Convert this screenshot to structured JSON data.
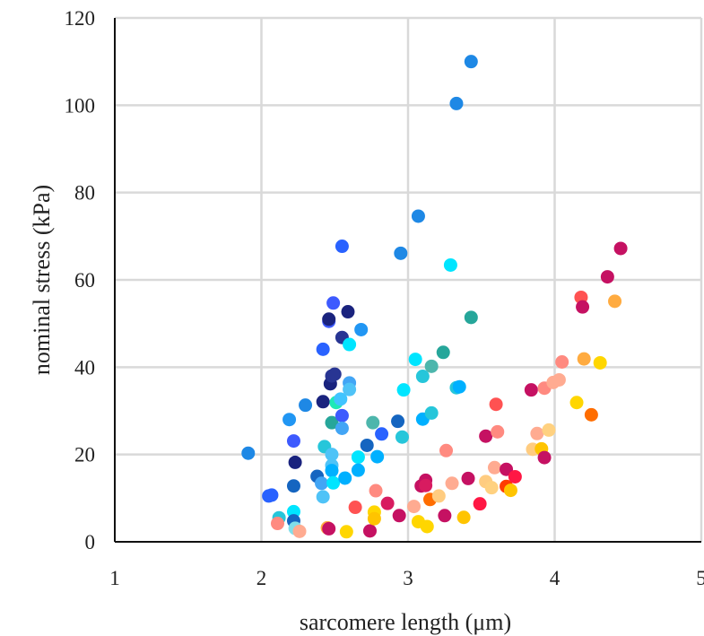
{
  "chart_data": {
    "type": "scatter",
    "xlabel": "sarcomere length (μm)",
    "ylabel": "nominal stress (kPa)",
    "xlim": [
      1,
      5
    ],
    "ylim": [
      0,
      120
    ],
    "xticks": [
      "1",
      "2",
      "3",
      "4",
      "5"
    ],
    "yticks": [
      "0",
      "20",
      "40",
      "60",
      "80",
      "100",
      "120"
    ],
    "grid": true,
    "legend": "none",
    "points": [
      {
        "x": 1.91,
        "y": 20.3,
        "color": "#1e88e5"
      },
      {
        "x": 2.05,
        "y": 10.5,
        "color": "#2962ff"
      },
      {
        "x": 2.07,
        "y": 10.7,
        "color": "#2962ff"
      },
      {
        "x": 2.12,
        "y": 5.5,
        "color": "#26c6da"
      },
      {
        "x": 2.11,
        "y": 4.2,
        "color": "#ff8a80"
      },
      {
        "x": 2.19,
        "y": 28.0,
        "color": "#2196f3"
      },
      {
        "x": 2.22,
        "y": 23.1,
        "color": "#3d5afe"
      },
      {
        "x": 2.23,
        "y": 18.2,
        "color": "#1a237e"
      },
      {
        "x": 2.22,
        "y": 12.8,
        "color": "#1565c0"
      },
      {
        "x": 2.22,
        "y": 6.9,
        "color": "#00e5ff"
      },
      {
        "x": 2.22,
        "y": 4.8,
        "color": "#1565c0"
      },
      {
        "x": 2.23,
        "y": 3.1,
        "color": "#80deea"
      },
      {
        "x": 2.26,
        "y": 2.4,
        "color": "#ffab91"
      },
      {
        "x": 2.3,
        "y": 31.3,
        "color": "#1e88e5"
      },
      {
        "x": 2.38,
        "y": 15.0,
        "color": "#1565c0"
      },
      {
        "x": 2.41,
        "y": 13.4,
        "color": "#42a5f5"
      },
      {
        "x": 2.42,
        "y": 44.1,
        "color": "#2962ff"
      },
      {
        "x": 2.42,
        "y": 32.1,
        "color": "#1a237e"
      },
      {
        "x": 2.43,
        "y": 21.8,
        "color": "#26c6da"
      },
      {
        "x": 2.42,
        "y": 10.3,
        "color": "#4fc3f7"
      },
      {
        "x": 2.45,
        "y": 3.2,
        "color": "#ffab40"
      },
      {
        "x": 2.46,
        "y": 3.0,
        "color": "#c51162"
      },
      {
        "x": 2.46,
        "y": 50.5,
        "color": "#3d5afe"
      },
      {
        "x": 2.46,
        "y": 51.0,
        "color": "#1a237e"
      },
      {
        "x": 2.47,
        "y": 36.2,
        "color": "#1a237e"
      },
      {
        "x": 2.48,
        "y": 38.0,
        "color": "#283593"
      },
      {
        "x": 2.48,
        "y": 27.3,
        "color": "#26a69a"
      },
      {
        "x": 2.48,
        "y": 20.0,
        "color": "#4fc3f7"
      },
      {
        "x": 2.48,
        "y": 17.5,
        "color": "#4fc3f7"
      },
      {
        "x": 2.48,
        "y": 16.3,
        "color": "#00b0ff"
      },
      {
        "x": 2.49,
        "y": 13.5,
        "color": "#00e5ff"
      },
      {
        "x": 2.49,
        "y": 54.7,
        "color": "#3d5afe"
      },
      {
        "x": 2.5,
        "y": 38.4,
        "color": "#283593"
      },
      {
        "x": 2.51,
        "y": 31.9,
        "color": "#1de9b6"
      },
      {
        "x": 2.54,
        "y": 32.7,
        "color": "#40c4ff"
      },
      {
        "x": 2.55,
        "y": 67.7,
        "color": "#2962ff"
      },
      {
        "x": 2.55,
        "y": 46.8,
        "color": "#283593"
      },
      {
        "x": 2.55,
        "y": 28.9,
        "color": "#3d5afe"
      },
      {
        "x": 2.55,
        "y": 26.0,
        "color": "#42a5f5"
      },
      {
        "x": 2.57,
        "y": 14.6,
        "color": "#00b0ff"
      },
      {
        "x": 2.58,
        "y": 2.3,
        "color": "#ffd600"
      },
      {
        "x": 2.59,
        "y": 52.7,
        "color": "#1a237e"
      },
      {
        "x": 2.6,
        "y": 45.2,
        "color": "#00e5ff"
      },
      {
        "x": 2.6,
        "y": 36.4,
        "color": "#42a5f5"
      },
      {
        "x": 2.6,
        "y": 34.9,
        "color": "#4fc3f7"
      },
      {
        "x": 2.64,
        "y": 7.9,
        "color": "#ff5252"
      },
      {
        "x": 2.66,
        "y": 19.4,
        "color": "#00e5ff"
      },
      {
        "x": 2.66,
        "y": 16.4,
        "color": "#00b0ff"
      },
      {
        "x": 2.68,
        "y": 48.6,
        "color": "#2196f3"
      },
      {
        "x": 2.72,
        "y": 22.1,
        "color": "#1565c0"
      },
      {
        "x": 2.74,
        "y": 2.5,
        "color": "#c51162"
      },
      {
        "x": 2.76,
        "y": 27.3,
        "color": "#4db6ac"
      },
      {
        "x": 2.77,
        "y": 6.8,
        "color": "#ffd600"
      },
      {
        "x": 2.77,
        "y": 5.3,
        "color": "#ffc400"
      },
      {
        "x": 2.78,
        "y": 11.7,
        "color": "#ff8a80"
      },
      {
        "x": 2.79,
        "y": 19.5,
        "color": "#00b0ff"
      },
      {
        "x": 2.82,
        "y": 24.7,
        "color": "#2962ff"
      },
      {
        "x": 2.86,
        "y": 8.8,
        "color": "#d81b60"
      },
      {
        "x": 2.93,
        "y": 27.6,
        "color": "#1565c0"
      },
      {
        "x": 2.94,
        "y": 6.0,
        "color": "#c51162"
      },
      {
        "x": 2.95,
        "y": 66.1,
        "color": "#1e88e5"
      },
      {
        "x": 2.96,
        "y": 24.0,
        "color": "#26c6da"
      },
      {
        "x": 2.97,
        "y": 34.8,
        "color": "#00e5ff"
      },
      {
        "x": 3.05,
        "y": 41.8,
        "color": "#00e5ff"
      },
      {
        "x": 3.04,
        "y": 8.1,
        "color": "#ffab91"
      },
      {
        "x": 3.07,
        "y": 74.6,
        "color": "#1e88e5"
      },
      {
        "x": 3.07,
        "y": 4.6,
        "color": "#ffd600"
      },
      {
        "x": 3.09,
        "y": 12.8,
        "color": "#c51162"
      },
      {
        "x": 3.1,
        "y": 37.9,
        "color": "#26c6da"
      },
      {
        "x": 3.1,
        "y": 28.1,
        "color": "#00b0ff"
      },
      {
        "x": 3.12,
        "y": 14.1,
        "color": "#c51162"
      },
      {
        "x": 3.12,
        "y": 12.9,
        "color": "#d81b60"
      },
      {
        "x": 3.13,
        "y": 3.5,
        "color": "#ffd600"
      },
      {
        "x": 3.15,
        "y": 9.7,
        "color": "#ff6d00"
      },
      {
        "x": 3.16,
        "y": 40.2,
        "color": "#4db6ac"
      },
      {
        "x": 3.16,
        "y": 29.5,
        "color": "#26c6da"
      },
      {
        "x": 3.21,
        "y": 10.5,
        "color": "#ffcc80"
      },
      {
        "x": 3.24,
        "y": 43.4,
        "color": "#26a69a"
      },
      {
        "x": 3.25,
        "y": 6.0,
        "color": "#c51162"
      },
      {
        "x": 3.26,
        "y": 20.9,
        "color": "#ff8a80"
      },
      {
        "x": 3.29,
        "y": 63.4,
        "color": "#00e5ff"
      },
      {
        "x": 3.3,
        "y": 13.4,
        "color": "#ffab91"
      },
      {
        "x": 3.33,
        "y": 100.4,
        "color": "#1e88e5"
      },
      {
        "x": 3.33,
        "y": 35.3,
        "color": "#26c6da"
      },
      {
        "x": 3.35,
        "y": 35.5,
        "color": "#00b0ff"
      },
      {
        "x": 3.38,
        "y": 5.6,
        "color": "#ffc400"
      },
      {
        "x": 3.41,
        "y": 14.5,
        "color": "#c51162"
      },
      {
        "x": 3.43,
        "y": 110.0,
        "color": "#1e88e5"
      },
      {
        "x": 3.43,
        "y": 51.4,
        "color": "#26a69a"
      },
      {
        "x": 3.49,
        "y": 8.7,
        "color": "#ff1744"
      },
      {
        "x": 3.53,
        "y": 24.2,
        "color": "#c51162"
      },
      {
        "x": 3.53,
        "y": 13.8,
        "color": "#ffcc80"
      },
      {
        "x": 3.57,
        "y": 12.4,
        "color": "#ffd180"
      },
      {
        "x": 3.59,
        "y": 17.0,
        "color": "#ffab91"
      },
      {
        "x": 3.6,
        "y": 31.5,
        "color": "#ff5252"
      },
      {
        "x": 3.61,
        "y": 25.2,
        "color": "#ff8a80"
      },
      {
        "x": 3.67,
        "y": 16.6,
        "color": "#c51162"
      },
      {
        "x": 3.67,
        "y": 12.7,
        "color": "#ff3d00"
      },
      {
        "x": 3.7,
        "y": 11.8,
        "color": "#ffc400"
      },
      {
        "x": 3.73,
        "y": 14.9,
        "color": "#ff1744"
      },
      {
        "x": 3.84,
        "y": 34.8,
        "color": "#c51162"
      },
      {
        "x": 3.85,
        "y": 21.2,
        "color": "#ffcc80"
      },
      {
        "x": 3.88,
        "y": 24.8,
        "color": "#ffab91"
      },
      {
        "x": 3.91,
        "y": 21.3,
        "color": "#ffc400"
      },
      {
        "x": 3.93,
        "y": 19.3,
        "color": "#c51162"
      },
      {
        "x": 3.93,
        "y": 35.2,
        "color": "#ff8a80"
      },
      {
        "x": 3.96,
        "y": 25.6,
        "color": "#ffd180"
      },
      {
        "x": 3.99,
        "y": 36.5,
        "color": "#ffab91"
      },
      {
        "x": 4.03,
        "y": 37.1,
        "color": "#ffab91"
      },
      {
        "x": 4.05,
        "y": 41.2,
        "color": "#ff8a80"
      },
      {
        "x": 4.15,
        "y": 31.9,
        "color": "#ffd600"
      },
      {
        "x": 4.18,
        "y": 56.0,
        "color": "#ff5252"
      },
      {
        "x": 4.19,
        "y": 53.8,
        "color": "#c51162"
      },
      {
        "x": 4.2,
        "y": 41.9,
        "color": "#ffab40"
      },
      {
        "x": 4.25,
        "y": 29.1,
        "color": "#ff6d00"
      },
      {
        "x": 4.31,
        "y": 41.0,
        "color": "#ffd600"
      },
      {
        "x": 4.36,
        "y": 60.7,
        "color": "#c51162"
      },
      {
        "x": 4.41,
        "y": 55.1,
        "color": "#ffab40"
      },
      {
        "x": 4.45,
        "y": 67.2,
        "color": "#c51162"
      }
    ]
  }
}
